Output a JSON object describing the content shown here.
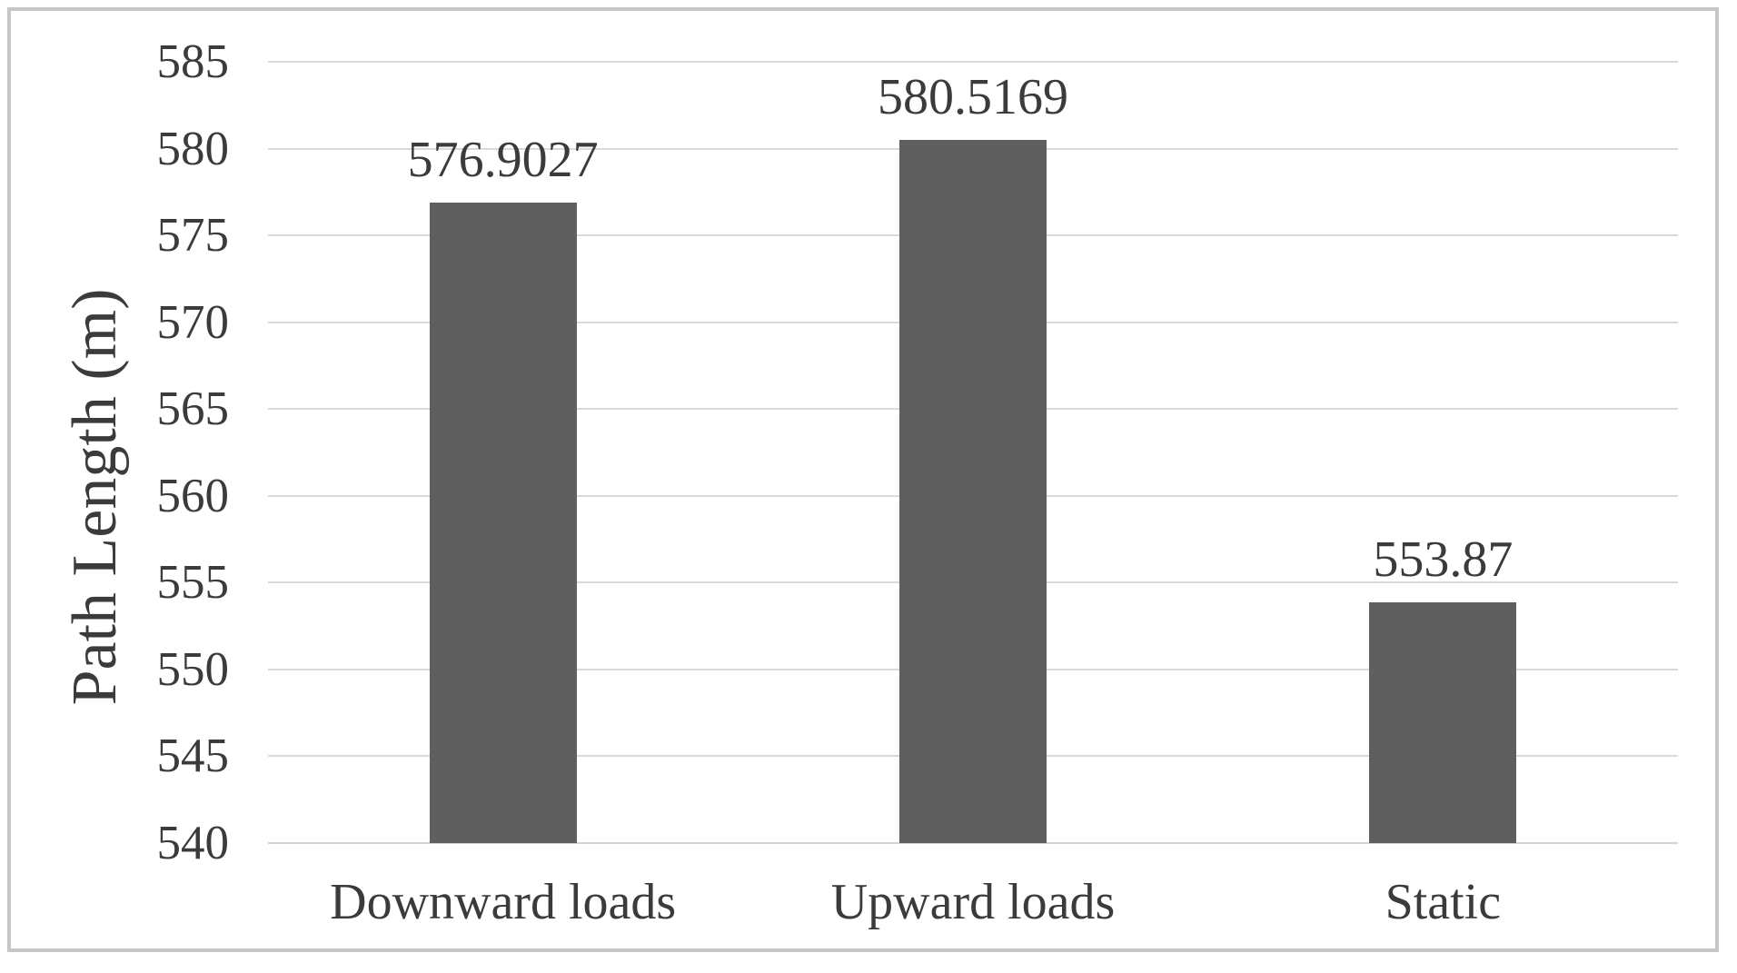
{
  "figure": {
    "background_color": "#ffffff",
    "frame_border_color": "#c6c6c6"
  },
  "chart_data": {
    "type": "bar",
    "title": "",
    "categories": [
      "Downward loads",
      "Upward loads",
      "Static"
    ],
    "values": [
      576.9027,
      580.5169,
      553.87
    ],
    "data_labels": [
      "576.9027",
      "580.5169",
      "553.87"
    ],
    "xlabel": "",
    "ylabel": "Path Length (m)",
    "ylim": [
      540,
      585
    ],
    "yticks": [
      540,
      545,
      550,
      555,
      560,
      565,
      570,
      575,
      580,
      585
    ],
    "ytick_labels": [
      "540",
      "545",
      "550",
      "555",
      "560",
      "565",
      "570",
      "575",
      "580",
      "585"
    ],
    "grid": "horizontal-on",
    "legend_position": "none",
    "bar_color": "#5f5f5f",
    "gridline_color": "#d9d9d9",
    "text_color": "#3b3b3b"
  }
}
